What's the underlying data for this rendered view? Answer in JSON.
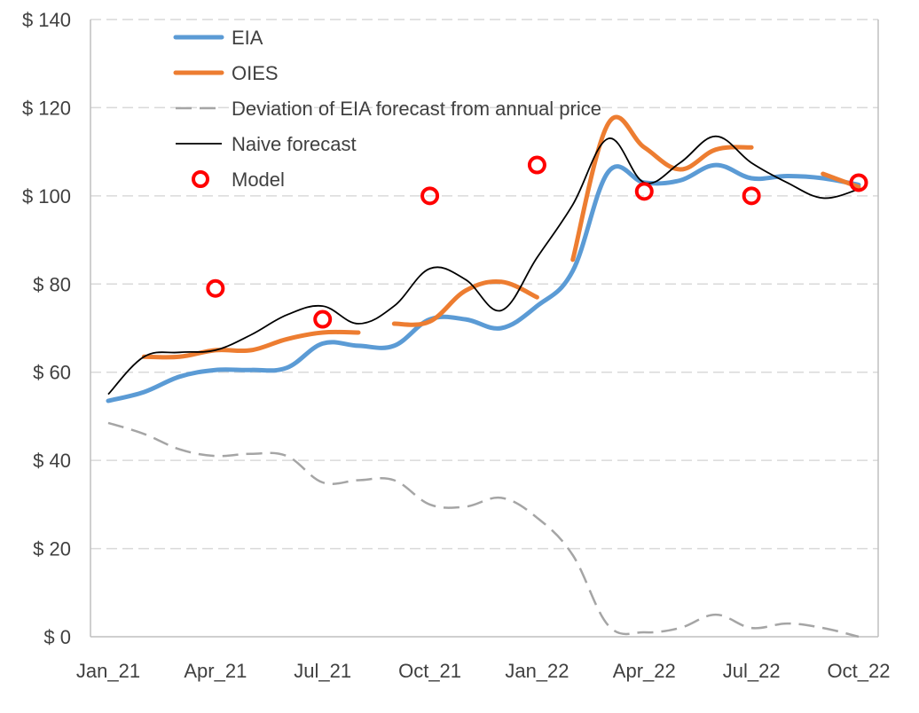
{
  "chart_data": {
    "type": "line",
    "title": "",
    "xlabel": "",
    "ylabel": "",
    "ylim": [
      0,
      140
    ],
    "y_ticks": [
      0,
      20,
      40,
      60,
      80,
      100,
      120,
      140
    ],
    "y_tick_labels": [
      "$ 0",
      "$ 20",
      "$ 40",
      "$ 60",
      "$ 80",
      "$ 100",
      "$ 120",
      "$ 140"
    ],
    "x_categories": [
      "Jan_21",
      "Feb_21",
      "Mar_21",
      "Apr_21",
      "May_21",
      "Jun_21",
      "Jul_21",
      "Aug_21",
      "Sep_21",
      "Oct_21",
      "Nov_21",
      "Dec_21",
      "Jan_22",
      "Feb_22",
      "Mar_22",
      "Apr_22",
      "May_22",
      "Jun_22",
      "Jul_22",
      "Aug_22",
      "Sep_22",
      "Oct_22"
    ],
    "x_tick_labels": [
      "Jan_21",
      "Apr_21",
      "Jul_21",
      "Oct_21",
      "Jan_22",
      "Apr_22",
      "Jul_22",
      "Oct_22"
    ],
    "x_tick_indices": [
      0,
      3,
      6,
      9,
      12,
      15,
      18,
      21
    ],
    "grid": true,
    "legend_position": "top-left",
    "series": [
      {
        "name": "EIA",
        "color": "#5B9BD5",
        "style": "solid-thick",
        "values": [
          53.5,
          55.5,
          59,
          60.5,
          60.5,
          61,
          66.5,
          66,
          66,
          72,
          72,
          70,
          75,
          83,
          105.5,
          103,
          103.5,
          107,
          104,
          104.5,
          104,
          102.5
        ]
      },
      {
        "name": "OIES",
        "color": "#ED7D31",
        "style": "solid-thick",
        "segments": [
          {
            "start": 1,
            "values": [
              63.5,
              63.5,
              65,
              65,
              67.5,
              69,
              69
            ]
          },
          {
            "start": 8,
            "values": [
              71,
              71.5,
              78.5,
              80.5,
              77
            ]
          },
          {
            "start": 13,
            "values": [
              85.5,
              116.5,
              111,
              106,
              110.5,
              111
            ]
          },
          {
            "start": 20,
            "values": [
              105,
              102
            ]
          }
        ]
      },
      {
        "name": "Deviation of EIA forecast from annual price",
        "color": "#A5A5A5",
        "style": "dashed",
        "values": [
          48.5,
          46,
          42.5,
          41,
          41.5,
          41,
          35,
          35.5,
          35.5,
          30,
          29.5,
          31.5,
          27,
          18.5,
          2.5,
          1,
          2,
          5,
          2,
          3,
          2,
          0
        ]
      },
      {
        "name": "Naive forecast",
        "color": "#000000",
        "style": "solid-thin",
        "values": [
          55,
          63.5,
          64.5,
          65,
          68.5,
          73,
          75,
          71,
          75,
          83.5,
          81,
          74,
          86,
          98,
          113,
          103,
          107.5,
          113.5,
          107.5,
          103,
          99.5,
          101.5
        ]
      },
      {
        "name": "Model",
        "color": "#FF0000",
        "style": "marker-ring",
        "points": [
          {
            "x": "Apr_21",
            "y": 79
          },
          {
            "x": "Jul_21",
            "y": 72
          },
          {
            "x": "Oct_21",
            "y": 100
          },
          {
            "x": "Jan_22",
            "y": 107
          },
          {
            "x": "Apr_22",
            "y": 101
          },
          {
            "x": "Jul_22",
            "y": 100
          },
          {
            "x": "Oct_22",
            "y": 103
          }
        ]
      }
    ]
  }
}
